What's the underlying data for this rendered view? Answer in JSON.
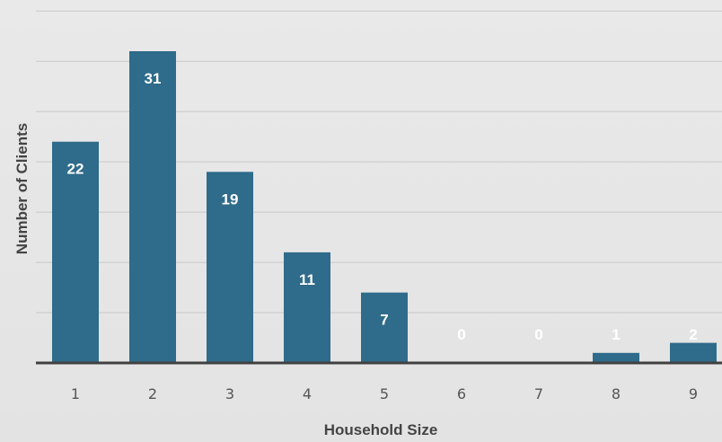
{
  "chart_data": {
    "type": "bar",
    "title": "",
    "xlabel": "Household Size",
    "ylabel": "Number of Clients",
    "categories": [
      "1",
      "2",
      "3",
      "4",
      "5",
      "6",
      "7",
      "8",
      "9"
    ],
    "values": [
      22,
      31,
      19,
      11,
      7,
      0,
      0,
      1,
      2
    ],
    "ylim": [
      0,
      35
    ],
    "grid": true,
    "legend": "none",
    "bar_color": "#2f6b8a",
    "label_color": "#ffffff"
  }
}
